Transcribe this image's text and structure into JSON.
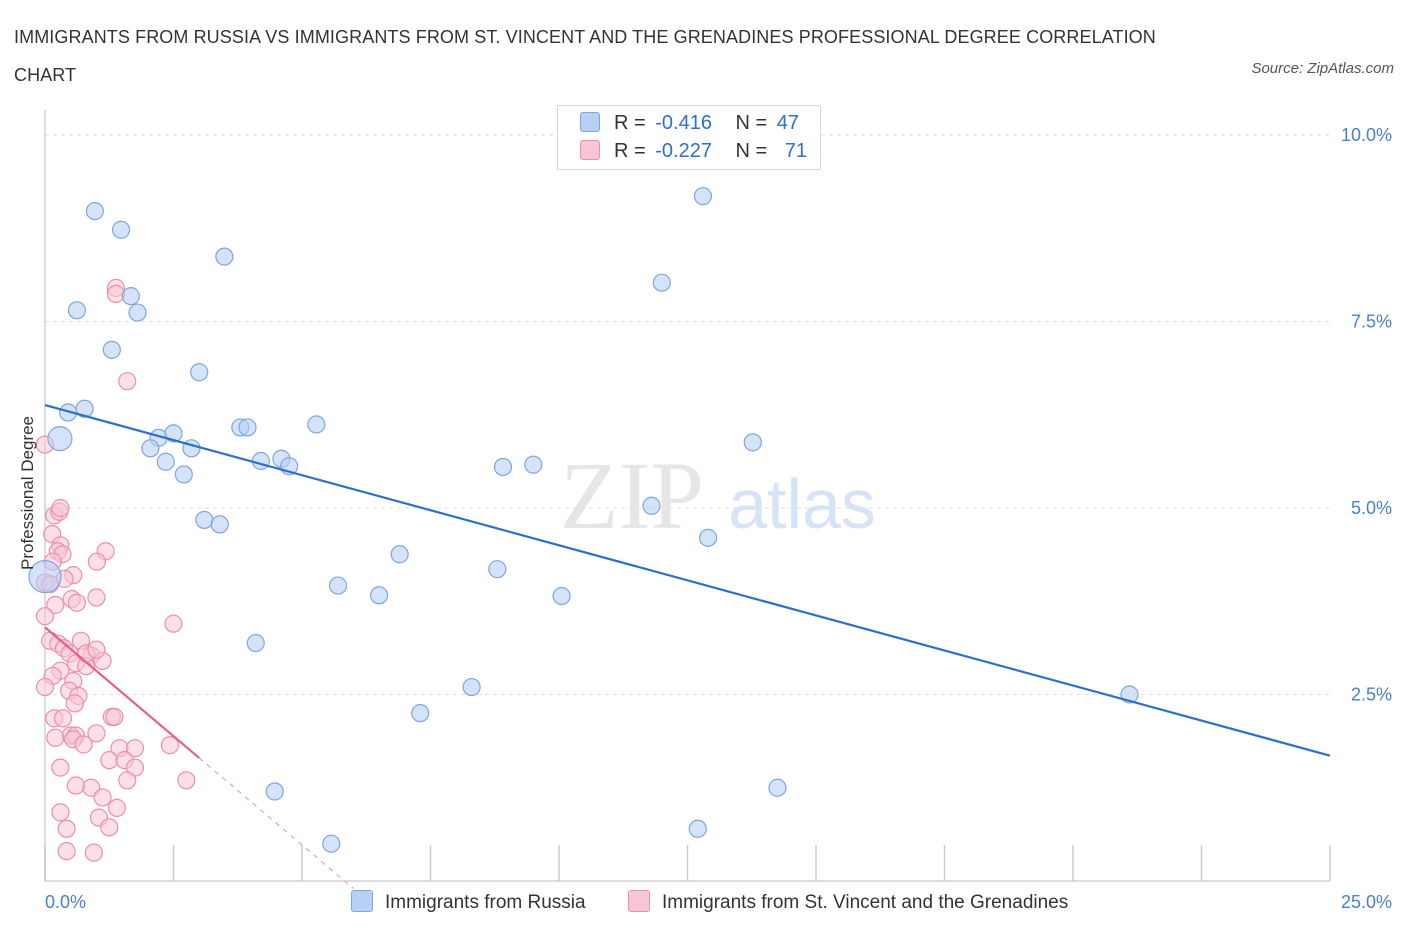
{
  "title": "IMMIGRANTS FROM RUSSIA VS IMMIGRANTS FROM ST. VINCENT AND THE GRENADINES PROFESSIONAL DEGREE CORRELATION CHART",
  "source": "Source: ZipAtlas.com",
  "watermark": {
    "zip": "ZIP",
    "atlas": "atlas"
  },
  "legend": {
    "r_label": "R =",
    "n_label": "N =",
    "rows": [
      {
        "r": "-0.416",
        "n": "47"
      },
      {
        "r": "-0.227",
        "n": "71"
      }
    ]
  },
  "colors": {
    "russia_fill": "#b8d0f4",
    "russia_stroke": "#7ea6e0",
    "russia_line": "#2d6fcc",
    "svg_fill": "#f8c6d4",
    "svg_stroke": "#eb8fae",
    "svg_line": "#e2608a",
    "grid": "#dddddd",
    "tick_text": "#4a7fc9"
  },
  "chart_data": {
    "type": "scatter",
    "ylabel": "Professional Degree",
    "xlabel": "",
    "xlim": [
      0,
      25
    ],
    "ylim": [
      0,
      10
    ],
    "x_tick_labels": [
      {
        "x": 0,
        "label": "0.0%"
      },
      {
        "x": 25,
        "label": "25.0%"
      }
    ],
    "y_tick_labels": [
      {
        "y": 2.5,
        "label": "2.5%"
      },
      {
        "y": 5.0,
        "label": "5.0%"
      },
      {
        "y": 7.5,
        "label": "7.5%"
      },
      {
        "y": 10.0,
        "label": "10.0%"
      }
    ],
    "series": [
      {
        "name": "Immigrants from Russia",
        "r": -0.416,
        "n": 47,
        "trend": {
          "x0": 0,
          "y0": 6.38,
          "x1": 25,
          "y1": 1.68,
          "dash_to": null
        },
        "points": [
          [
            0.97,
            8.98
          ],
          [
            1.48,
            8.73
          ],
          [
            3.49,
            8.37
          ],
          [
            0.62,
            7.65
          ],
          [
            1.67,
            7.84
          ],
          [
            1.8,
            7.62
          ],
          [
            1.3,
            7.12
          ],
          [
            3.0,
            6.82
          ],
          [
            0.45,
            6.28
          ],
          [
            0.77,
            6.33
          ],
          [
            5.28,
            6.12
          ],
          [
            3.8,
            6.08
          ],
          [
            3.94,
            6.08
          ],
          [
            2.21,
            5.94
          ],
          [
            2.5,
            6.0
          ],
          [
            2.05,
            5.8
          ],
          [
            2.85,
            5.8
          ],
          [
            0.29,
            5.93
          ],
          [
            2.35,
            5.62
          ],
          [
            4.2,
            5.63
          ],
          [
            4.6,
            5.66
          ],
          [
            4.75,
            5.56
          ],
          [
            2.7,
            5.45
          ],
          [
            8.91,
            5.55
          ],
          [
            9.5,
            5.58
          ],
          [
            3.1,
            4.84
          ],
          [
            3.4,
            4.78
          ],
          [
            11.8,
            5.03
          ],
          [
            12.9,
            4.6
          ],
          [
            13.77,
            5.88
          ],
          [
            0.0,
            4.08
          ],
          [
            6.9,
            4.38
          ],
          [
            5.7,
            3.96
          ],
          [
            8.8,
            4.18
          ],
          [
            6.5,
            3.83
          ],
          [
            10.05,
            3.82
          ],
          [
            4.1,
            3.19
          ],
          [
            12.8,
            9.18
          ],
          [
            12.0,
            8.02
          ],
          [
            8.3,
            2.6
          ],
          [
            7.3,
            2.25
          ],
          [
            21.1,
            2.5
          ],
          [
            14.25,
            1.25
          ],
          [
            4.47,
            1.2
          ],
          [
            12.7,
            0.7
          ],
          [
            5.57,
            0.5
          ],
          [
            0.5,
            4.05
          ]
        ]
      },
      {
        "name": "Immigrants from St. Vincent and the Grenadines",
        "r": -0.227,
        "n": 71,
        "trend": {
          "x0": 0,
          "y0": 3.4,
          "x1": 3.0,
          "y1": 1.65,
          "dash_to": [
            6.0,
            -0.1
          ]
        },
        "points": [
          [
            0.0,
            5.85
          ],
          [
            0.18,
            4.9
          ],
          [
            0.14,
            4.65
          ],
          [
            0.3,
            4.5
          ],
          [
            0.28,
            4.95
          ],
          [
            0.3,
            5.0
          ],
          [
            0.25,
            4.42
          ],
          [
            0.34,
            4.38
          ],
          [
            0.15,
            4.28
          ],
          [
            1.18,
            4.42
          ],
          [
            1.01,
            4.28
          ],
          [
            0.55,
            4.1
          ],
          [
            0.38,
            4.05
          ],
          [
            0.0,
            4.0
          ],
          [
            0.1,
            3.98
          ],
          [
            0.2,
            3.7
          ],
          [
            0.52,
            3.78
          ],
          [
            1.0,
            3.8
          ],
          [
            0.62,
            3.73
          ],
          [
            0.0,
            3.55
          ],
          [
            2.5,
            3.45
          ],
          [
            0.1,
            3.22
          ],
          [
            0.26,
            3.18
          ],
          [
            0.37,
            3.12
          ],
          [
            0.7,
            3.22
          ],
          [
            0.48,
            3.05
          ],
          [
            0.9,
            3.02
          ],
          [
            1.12,
            2.95
          ],
          [
            0.6,
            2.92
          ],
          [
            0.8,
            2.88
          ],
          [
            0.3,
            2.82
          ],
          [
            0.15,
            2.75
          ],
          [
            0.55,
            2.68
          ],
          [
            0.47,
            2.55
          ],
          [
            0.65,
            2.48
          ],
          [
            0.58,
            2.38
          ],
          [
            0.18,
            2.18
          ],
          [
            0.35,
            2.18
          ],
          [
            1.3,
            2.2
          ],
          [
            1.35,
            2.2
          ],
          [
            0.5,
            1.95
          ],
          [
            0.6,
            1.95
          ],
          [
            1.0,
            1.98
          ],
          [
            0.2,
            1.92
          ],
          [
            0.55,
            1.9
          ],
          [
            0.75,
            1.83
          ],
          [
            2.43,
            1.82
          ],
          [
            1.45,
            1.78
          ],
          [
            1.75,
            1.78
          ],
          [
            1.25,
            1.62
          ],
          [
            1.55,
            1.62
          ],
          [
            0.3,
            1.52
          ],
          [
            1.75,
            1.52
          ],
          [
            1.6,
            1.35
          ],
          [
            2.75,
            1.35
          ],
          [
            0.9,
            1.25
          ],
          [
            0.6,
            1.28
          ],
          [
            1.12,
            1.12
          ],
          [
            1.4,
            0.98
          ],
          [
            0.3,
            0.92
          ],
          [
            1.05,
            0.85
          ],
          [
            1.25,
            0.72
          ],
          [
            0.42,
            0.7
          ],
          [
            0.42,
            0.4
          ],
          [
            0.95,
            0.38
          ],
          [
            1.38,
            7.95
          ],
          [
            1.38,
            7.87
          ],
          [
            1.6,
            6.7
          ],
          [
            0.8,
            3.05
          ],
          [
            0.0,
            2.6
          ],
          [
            1.0,
            3.1
          ]
        ]
      }
    ]
  }
}
